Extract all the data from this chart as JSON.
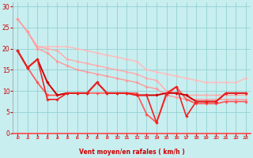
{
  "xlabel": "Vent moyen/en rafales ( km/h )",
  "xlim": [
    -0.5,
    23.5
  ],
  "ylim": [
    0,
    31
  ],
  "yticks": [
    0,
    5,
    10,
    15,
    20,
    25,
    30
  ],
  "xticks": [
    0,
    1,
    2,
    3,
    4,
    5,
    6,
    7,
    8,
    9,
    10,
    11,
    12,
    13,
    14,
    15,
    16,
    17,
    18,
    19,
    20,
    21,
    22,
    23
  ],
  "bg_color": "#c8eef0",
  "grid_color": "#88cccc",
  "series": [
    {
      "x": [
        0,
        1,
        2,
        3,
        4,
        5,
        6,
        7,
        8,
        9,
        10,
        11,
        12,
        13,
        14,
        15,
        16,
        17,
        18,
        19,
        20,
        21,
        22,
        23
      ],
      "y": [
        27,
        24,
        20.5,
        20.5,
        20.5,
        20.5,
        20,
        19.5,
        19,
        18.5,
        18,
        17.5,
        17,
        15,
        14.5,
        14,
        13.5,
        13,
        12.5,
        12,
        12,
        12,
        12,
        13
      ],
      "color": "#ffbbbb",
      "lw": 1.0,
      "marker": "D",
      "ms": 1.8
    },
    {
      "x": [
        0,
        1,
        2,
        3,
        4,
        5,
        6,
        7,
        8,
        9,
        10,
        11,
        12,
        13,
        14,
        15,
        16,
        17,
        18,
        19,
        20,
        21,
        22,
        23
      ],
      "y": [
        27,
        24,
        20.5,
        20,
        19.5,
        17.5,
        17,
        16.5,
        16,
        15.5,
        15,
        14.5,
        14,
        13,
        12.5,
        10,
        9.5,
        9,
        9,
        9,
        9,
        9,
        9,
        9
      ],
      "color": "#ffaaaa",
      "lw": 1.0,
      "marker": "D",
      "ms": 1.8
    },
    {
      "x": [
        0,
        1,
        2,
        3,
        4,
        5,
        6,
        7,
        8,
        9,
        10,
        11,
        12,
        13,
        14,
        15,
        16,
        17,
        18,
        19,
        20,
        21,
        22,
        23
      ],
      "y": [
        27,
        24,
        20,
        19,
        17,
        16,
        15,
        14.5,
        14,
        13.5,
        13,
        12.5,
        12,
        11,
        10.5,
        9,
        8.5,
        8,
        8,
        8,
        8,
        8,
        8,
        8
      ],
      "color": "#ff9999",
      "lw": 1.0,
      "marker": "D",
      "ms": 1.8
    },
    {
      "x": [
        0,
        1,
        2,
        3,
        4,
        5,
        6,
        7,
        8,
        9,
        10,
        11,
        12,
        13,
        14,
        15,
        16,
        17,
        18,
        19,
        20,
        21,
        22,
        23
      ],
      "y": [
        19.5,
        15.5,
        12,
        9,
        9,
        9.5,
        9.5,
        9.5,
        9.5,
        9.5,
        9.5,
        9.5,
        9.5,
        4.5,
        2.5,
        9,
        11,
        8,
        7,
        7,
        7,
        7.5,
        7.5,
        7.5
      ],
      "color": "#ff5555",
      "lw": 1.2,
      "marker": "D",
      "ms": 1.8
    },
    {
      "x": [
        0,
        1,
        2,
        3,
        4,
        5,
        6,
        7,
        8,
        9,
        10,
        11,
        12,
        13,
        14,
        15,
        16,
        17,
        18,
        19,
        20,
        21,
        22,
        23
      ],
      "y": [
        19.5,
        15.5,
        17.5,
        12,
        9,
        9.5,
        9.5,
        9.5,
        12,
        9.5,
        9.5,
        9.5,
        9,
        9,
        9,
        9.5,
        9.5,
        9,
        7.5,
        7.5,
        7.5,
        9.5,
        9.5,
        9.5
      ],
      "color": "#cc0000",
      "lw": 1.4,
      "marker": "D",
      "ms": 1.8
    },
    {
      "x": [
        0,
        1,
        2,
        3,
        4,
        5,
        6,
        7,
        8,
        9,
        10,
        11,
        12,
        13,
        14,
        15,
        16,
        17,
        18,
        19,
        20,
        21,
        22,
        23
      ],
      "y": [
        19.5,
        15.5,
        17.5,
        8,
        8,
        9.5,
        9.5,
        9.5,
        12,
        9.5,
        9.5,
        9.5,
        9,
        9,
        2.5,
        9.5,
        11,
        4,
        7.5,
        7.5,
        7.5,
        9.5,
        9.5,
        9.5
      ],
      "color": "#ee2222",
      "lw": 1.2,
      "marker": "D",
      "ms": 1.8
    }
  ],
  "arrow_color": "#ff4444",
  "xlabel_color": "#cc0000",
  "tick_color": "#cc0000"
}
